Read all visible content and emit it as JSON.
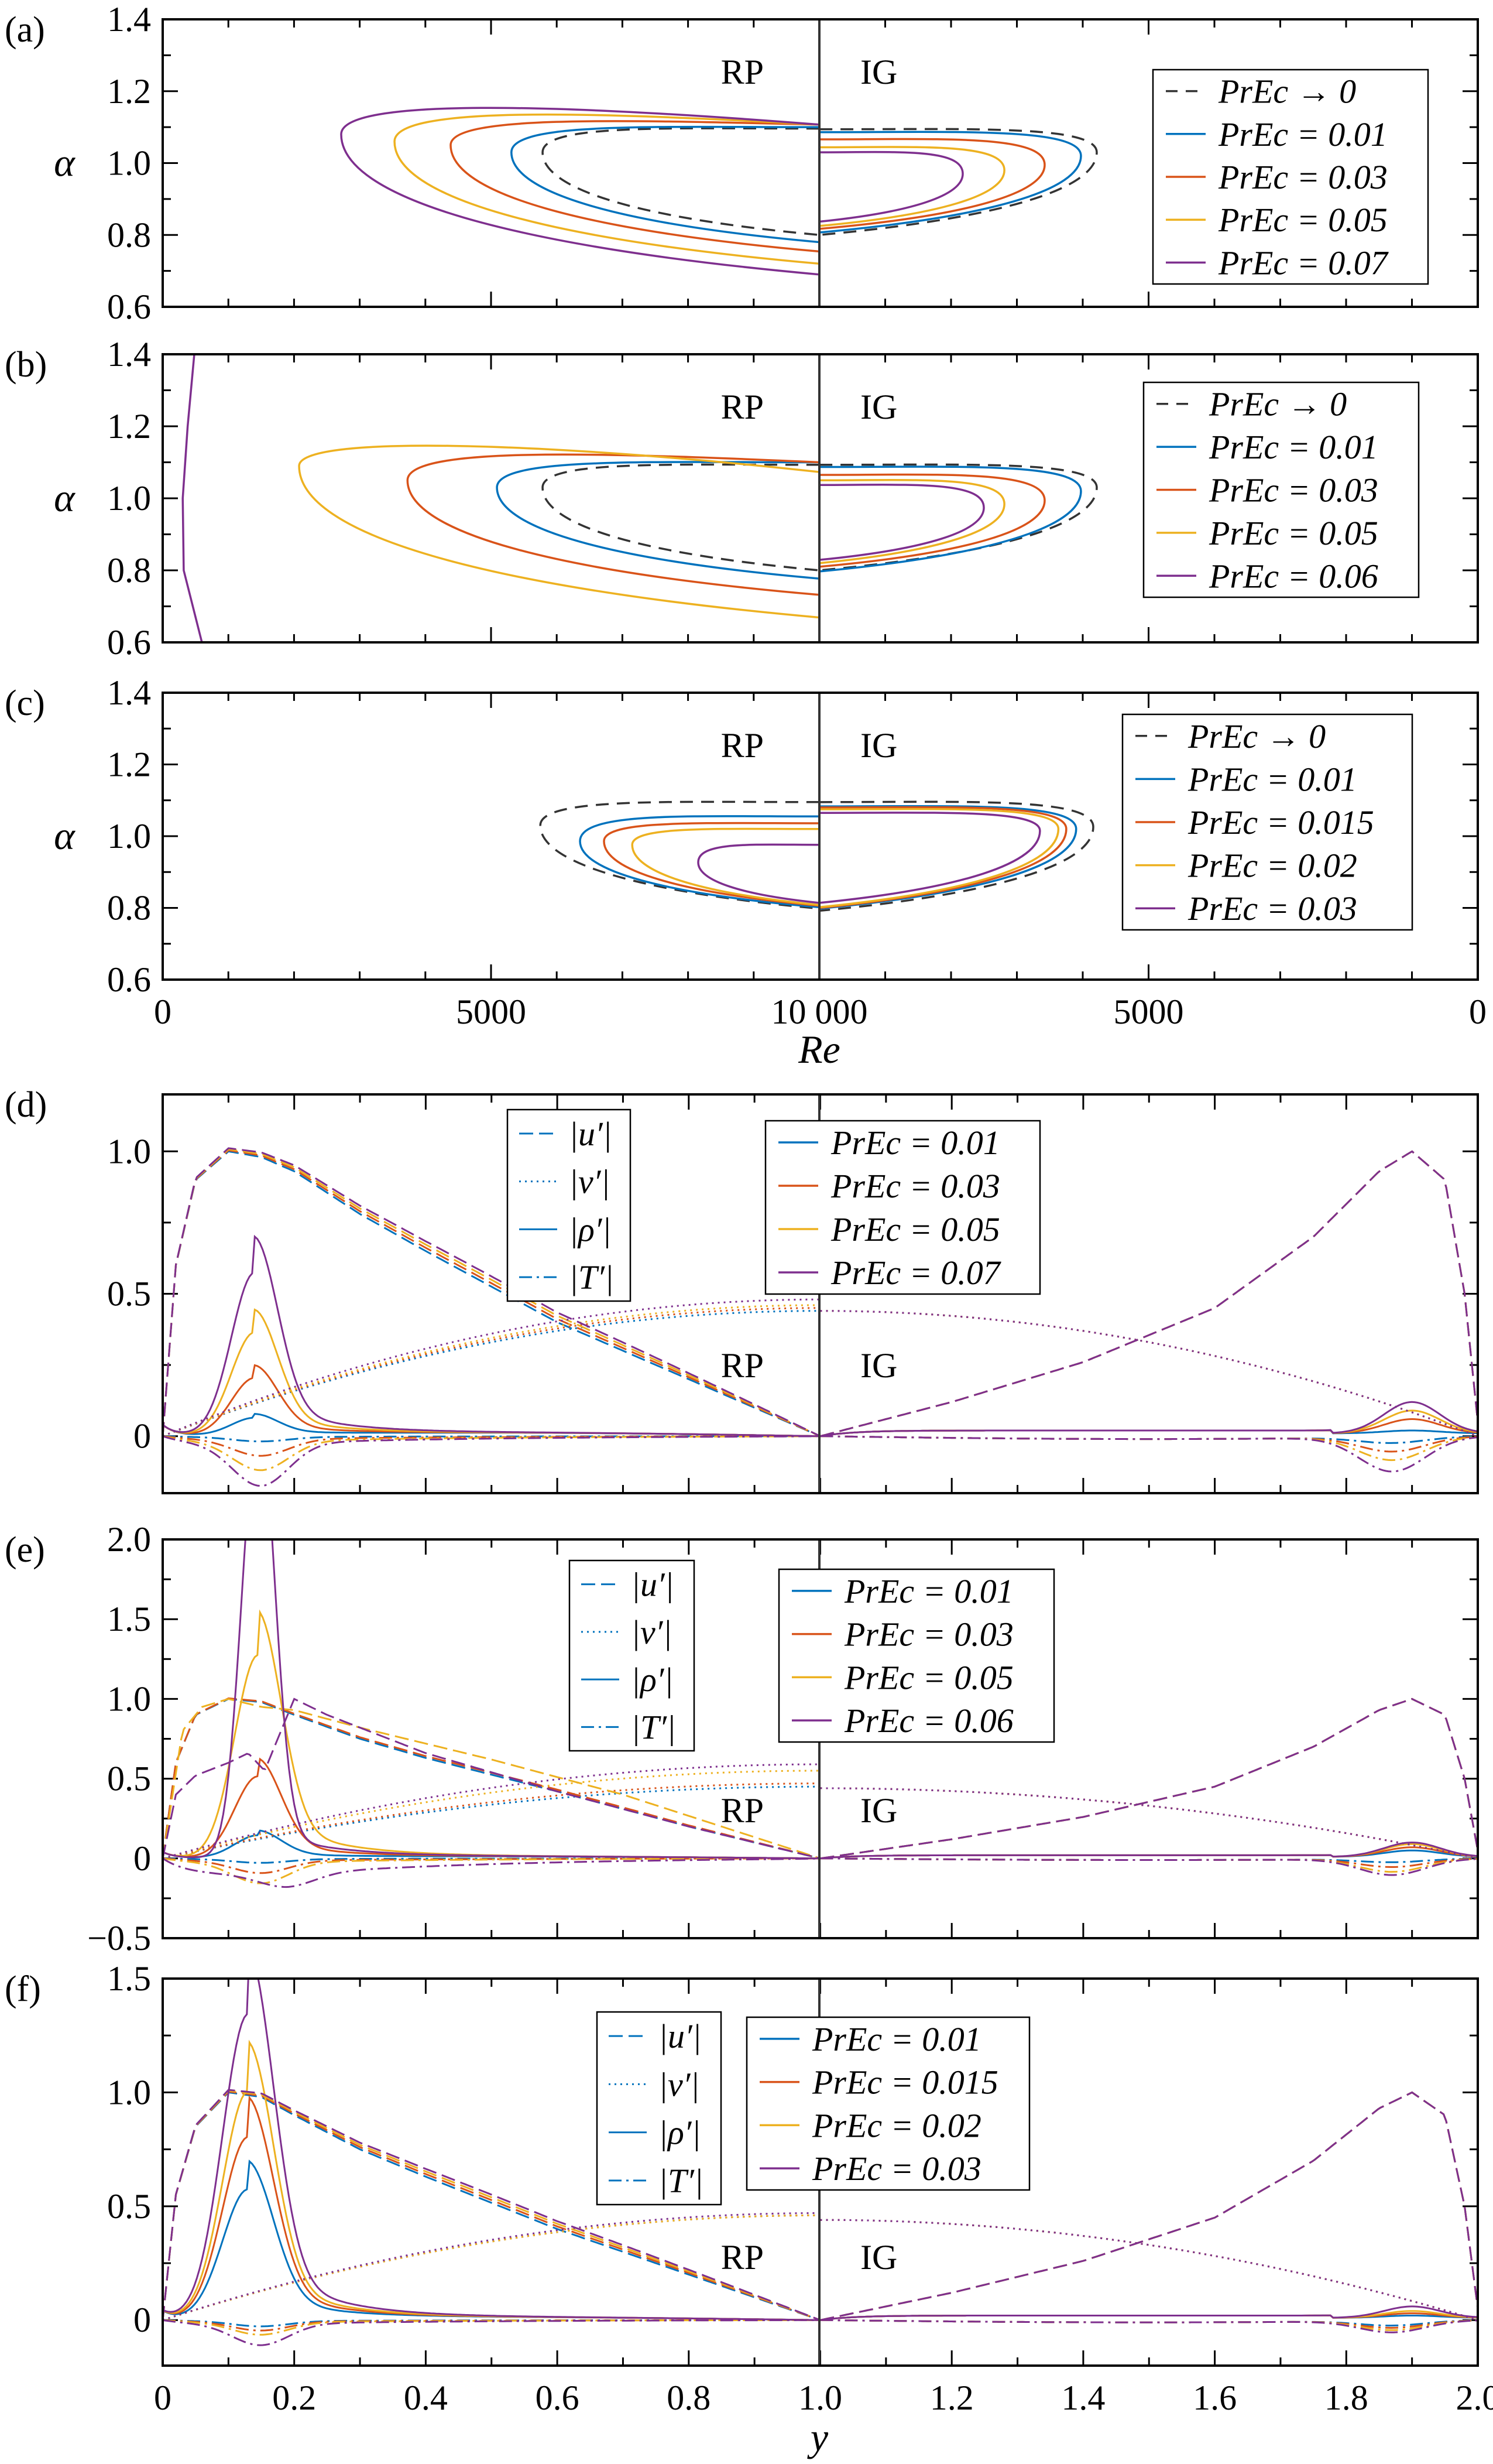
{
  "figure": {
    "re_axis_label": "Re",
    "y_axis_label": "y",
    "alpha_label": "α",
    "region_labels": {
      "rp": "RP",
      "ig": "IG"
    },
    "colors": {
      "black": "#333333",
      "blue": "#0072BD",
      "red": "#D95319",
      "yellow": "#EDB120",
      "purple": "#7E2F8E"
    }
  },
  "chart_data": [
    {
      "panel": "(a)",
      "type": "line",
      "ylabel": "α",
      "ylim": [
        0.6,
        1.4
      ],
      "yticks": [
        0.6,
        0.8,
        1.0,
        1.2,
        1.4
      ],
      "ytick_labels": [
        "0.6",
        "0.8",
        "1.0",
        "1.2",
        "1.4"
      ],
      "xlim_rp": [
        0,
        10000
      ],
      "xlim_ig": [
        10000,
        0
      ],
      "legend_placement": "top-right",
      "series": [
        {
          "label": "PrEc → 0",
          "color": "#333333",
          "dash": true,
          "rp": {
            "nose_re": 5785,
            "nose_alpha": 1.03,
            "upper_alpha": 1.096,
            "top_alpha": 1.096,
            "lower_alpha": 0.8
          },
          "ig": {
            "nose_re": 5787,
            "nose_alpha": 1.03,
            "upper_alpha": 1.094,
            "lower_alpha": 0.8
          }
        },
        {
          "label": "PrEc = 0.01",
          "color": "#0072BD",
          "rp": {
            "nose_re": 5310,
            "nose_alpha": 1.03,
            "upper_alpha": 1.1,
            "top_alpha": 1.1,
            "lower_alpha": 0.78
          },
          "ig": {
            "nose_re": 6027,
            "nose_alpha": 1.02,
            "upper_alpha": 1.086,
            "lower_alpha": 0.807
          }
        },
        {
          "label": "PrEc = 0.03",
          "color": "#D95319",
          "rp": {
            "nose_re": 4385,
            "nose_alpha": 1.05,
            "upper_alpha": 1.107,
            "top_alpha": 1.12,
            "lower_alpha": 0.754
          },
          "ig": {
            "nose_re": 6578,
            "nose_alpha": 0.995,
            "upper_alpha": 1.066,
            "lower_alpha": 0.817
          }
        },
        {
          "label": "PrEc = 0.05",
          "color": "#EDB120",
          "rp": {
            "nose_re": 3530,
            "nose_alpha": 1.06,
            "upper_alpha": 1.107,
            "top_alpha": 1.143,
            "lower_alpha": 0.72
          },
          "ig": {
            "nose_re": 7190,
            "nose_alpha": 0.98,
            "upper_alpha": 1.044,
            "lower_alpha": 0.825
          }
        },
        {
          "label": "PrEc = 0.07",
          "color": "#7E2F8E",
          "rp": {
            "nose_re": 2718,
            "nose_alpha": 1.08,
            "upper_alpha": 1.107,
            "top_alpha": 1.165,
            "lower_alpha": 0.69
          },
          "ig": {
            "nose_re": 7822,
            "nose_alpha": 0.97,
            "upper_alpha": 1.03,
            "lower_alpha": 0.837
          }
        }
      ]
    },
    {
      "panel": "(b)",
      "type": "line",
      "ylabel": "α",
      "ylim": [
        0.6,
        1.4
      ],
      "yticks": [
        0.6,
        0.8,
        1.0,
        1.2,
        1.4
      ],
      "ytick_labels": [
        "0.6",
        "0.8",
        "1.0",
        "1.2",
        "1.4"
      ],
      "xlim_rp": [
        0,
        10000
      ],
      "xlim_ig": [
        10000,
        0
      ],
      "legend_placement": "top-right",
      "series": [
        {
          "label": "PrEc → 0",
          "color": "#333333",
          "dash": true,
          "rp": {
            "nose_re": 5785,
            "nose_alpha": 1.03,
            "upper_alpha": 1.093,
            "top_alpha": 1.093,
            "lower_alpha": 0.8
          },
          "ig": {
            "nose_re": 5787,
            "nose_alpha": 1.03,
            "upper_alpha": 1.093,
            "lower_alpha": 0.8
          }
        },
        {
          "label": "PrEc = 0.01",
          "color": "#0072BD",
          "rp": {
            "nose_re": 5090,
            "nose_alpha": 1.03,
            "upper_alpha": 1.1,
            "top_alpha": 1.1,
            "lower_alpha": 0.777
          },
          "ig": {
            "nose_re": 6027,
            "nose_alpha": 1.02,
            "upper_alpha": 1.087,
            "lower_alpha": 0.797
          }
        },
        {
          "label": "PrEc = 0.03",
          "color": "#D95319",
          "rp": {
            "nose_re": 3728,
            "nose_alpha": 1.05,
            "upper_alpha": 1.1,
            "top_alpha": 1.128,
            "lower_alpha": 0.732
          },
          "ig": {
            "nose_re": 6578,
            "nose_alpha": 0.994,
            "upper_alpha": 1.065,
            "lower_alpha": 0.81
          }
        },
        {
          "label": "PrEc = 0.05",
          "color": "#EDB120",
          "rp": {
            "nose_re": 2077,
            "nose_alpha": 1.09,
            "upper_alpha": 1.073,
            "top_alpha": 1.16,
            "lower_alpha": 0.669
          },
          "ig": {
            "nose_re": 7190,
            "nose_alpha": 0.984,
            "upper_alpha": 1.05,
            "lower_alpha": 0.82
          }
        },
        {
          "label": "PrEc = 0.06",
          "color": "#7E2F8E",
          "rp_points": [
            [
              481,
              1.4
            ],
            [
              380,
              1.2
            ],
            [
              305,
              1.0
            ],
            [
              320,
              0.8
            ],
            [
              597,
              0.6
            ]
          ],
          "ig": {
            "nose_re": 7502,
            "nose_alpha": 0.974,
            "upper_alpha": 1.037,
            "lower_alpha": 0.829
          }
        }
      ]
    },
    {
      "panel": "(c)",
      "type": "line",
      "ylabel": "α",
      "xlabel": "Re",
      "ylim": [
        0.6,
        1.4
      ],
      "yticks": [
        0.6,
        0.8,
        1.0,
        1.2,
        1.4
      ],
      "ytick_labels": [
        "0.6",
        "0.8",
        "1.0",
        "1.2",
        "1.4"
      ],
      "xlim_rp": [
        0,
        10000
      ],
      "xlim_ig": [
        10000,
        0
      ],
      "xtick_labels": [
        "0",
        "5000",
        "10 000",
        "5000",
        "0"
      ],
      "legend_placement": "top-right",
      "series": [
        {
          "label": "PrEc → 0",
          "color": "#333333",
          "dash": true,
          "rp": {
            "nose_re": 5750,
            "nose_alpha": 1.03,
            "upper_alpha": 1.095,
            "top_alpha": 1.095,
            "lower_alpha": 0.798
          },
          "ig": {
            "nose_re": 5840,
            "nose_alpha": 1.026,
            "upper_alpha": 1.095,
            "lower_alpha": 0.792
          }
        },
        {
          "label": "PrEc = 0.01",
          "color": "#0072BD",
          "rp": {
            "nose_re": 6355,
            "nose_alpha": 0.986,
            "upper_alpha": 1.055,
            "top_alpha": 1.055,
            "lower_alpha": 0.802
          },
          "ig": {
            "nose_re": 6100,
            "nose_alpha": 1.02,
            "upper_alpha": 1.083,
            "lower_alpha": 0.798
          }
        },
        {
          "label": "PrEc = 0.015",
          "color": "#D95319",
          "rp": {
            "nose_re": 6720,
            "nose_alpha": 0.986,
            "upper_alpha": 1.036,
            "top_alpha": 1.036,
            "lower_alpha": 0.806
          },
          "ig": {
            "nose_re": 6250,
            "nose_alpha": 1.02,
            "upper_alpha": 1.08,
            "lower_alpha": 0.8
          }
        },
        {
          "label": "PrEc = 0.02",
          "color": "#EDB120",
          "rp": {
            "nose_re": 7150,
            "nose_alpha": 0.976,
            "upper_alpha": 1.02,
            "top_alpha": 1.02,
            "lower_alpha": 0.808
          },
          "ig": {
            "nose_re": 6370,
            "nose_alpha": 1.02,
            "upper_alpha": 1.075,
            "lower_alpha": 0.802
          }
        },
        {
          "label": "PrEc = 0.03",
          "color": "#7E2F8E",
          "rp": {
            "nose_re": 8155,
            "nose_alpha": 0.927,
            "upper_alpha": 0.976,
            "top_alpha": 0.976,
            "lower_alpha": 0.814
          },
          "ig": {
            "nose_re": 6650,
            "nose_alpha": 1.015,
            "upper_alpha": 1.065,
            "lower_alpha": 0.814
          }
        }
      ]
    },
    {
      "panel": "(d)",
      "type": "line",
      "ylim": [
        -0.2,
        1.2
      ],
      "xlim": [
        0,
        2
      ],
      "yticks": [
        0,
        0.5,
        1.0
      ],
      "ytick_labels": [
        "0",
        "0.5",
        "1.0"
      ],
      "variable_legend": [
        "|u′|",
        "|v′|",
        "|ρ′|",
        "|T′|"
      ],
      "rho_center": 0.14,
      "rho_width": 0.05,
      "u_rp": [
        [
          0,
          0
        ],
        [
          0.02,
          0.6
        ],
        [
          0.05,
          0.9
        ],
        [
          0.1,
          1.0
        ],
        [
          0.15,
          0.98
        ],
        [
          0.2,
          0.93
        ],
        [
          0.3,
          0.78
        ],
        [
          0.4,
          0.65
        ],
        [
          0.6,
          0.4
        ],
        [
          0.8,
          0.2
        ],
        [
          1.0,
          0
        ]
      ],
      "u_ig": [
        [
          1.0,
          0
        ],
        [
          1.2,
          0.12
        ],
        [
          1.4,
          0.26
        ],
        [
          1.6,
          0.45
        ],
        [
          1.75,
          0.7
        ],
        [
          1.85,
          0.93
        ],
        [
          1.9,
          1.0
        ],
        [
          1.95,
          0.9
        ],
        [
          1.98,
          0.5
        ],
        [
          2.0,
          0.05
        ]
      ],
      "v_ig_start": 0.44,
      "series": [
        {
          "label": "PrEc = 0.01",
          "color": "#0072BD",
          "rho_peak": 0.06,
          "T_min": 0.02,
          "rho_ig_peak": 0.01,
          "T_ig_min": 0.02,
          "v_end": 0.44
        },
        {
          "label": "PrEc = 0.03",
          "color": "#D95319",
          "rho_peak": 0.2,
          "T_min": 0.075,
          "rho_ig_peak": 0.05,
          "T_ig_min": 0.05,
          "v_end": 0.45
        },
        {
          "label": "PrEc = 0.05",
          "color": "#EDB120",
          "rho_peak": 0.36,
          "T_min": 0.13,
          "rho_ig_peak": 0.08,
          "T_ig_min": 0.08,
          "v_end": 0.46
        },
        {
          "label": "PrEc = 0.07",
          "color": "#7E2F8E",
          "rho_peak": 0.57,
          "T_min": 0.19,
          "rho_ig_peak": 0.11,
          "T_ig_min": 0.12,
          "v_end": 0.48
        }
      ]
    },
    {
      "panel": "(e)",
      "type": "line",
      "ylim": [
        -0.5,
        2.0
      ],
      "xlim": [
        0,
        2
      ],
      "yticks": [
        -0.5,
        0,
        0.5,
        1.0,
        1.5,
        2.0
      ],
      "ytick_labels": [
        "−0.5",
        "0",
        "0.5",
        "1.0",
        "1.5",
        "2.0"
      ],
      "variable_legend": [
        "|u′|",
        "|v′|",
        "|ρ′|",
        "|T′|"
      ],
      "rho_center": 0.145,
      "rho_width": 0.05,
      "u_rp": [
        [
          0,
          0
        ],
        [
          0.02,
          0.6
        ],
        [
          0.05,
          0.9
        ],
        [
          0.1,
          1.0
        ],
        [
          0.15,
          0.98
        ],
        [
          0.2,
          0.9
        ],
        [
          0.3,
          0.75
        ],
        [
          0.4,
          0.63
        ],
        [
          0.6,
          0.42
        ],
        [
          0.8,
          0.2
        ],
        [
          1.0,
          0
        ]
      ],
      "u_ig": [
        [
          1.0,
          0
        ],
        [
          1.2,
          0.12
        ],
        [
          1.4,
          0.26
        ],
        [
          1.6,
          0.45
        ],
        [
          1.75,
          0.7
        ],
        [
          1.85,
          0.93
        ],
        [
          1.9,
          1.0
        ],
        [
          1.95,
          0.9
        ],
        [
          1.98,
          0.5
        ],
        [
          2.0,
          0.05
        ]
      ],
      "v_ig_start": 0.44,
      "series": [
        {
          "label": "PrEc = 0.01",
          "color": "#0072BD",
          "rho_peak": 0.14,
          "T_min": 0.03,
          "rho_ig_peak": 0.04,
          "T_ig_min": 0.02,
          "v_end": 0.45
        },
        {
          "label": "PrEc = 0.03",
          "color": "#D95319",
          "rho_peak": 0.51,
          "T_min": 0.1,
          "rho_ig_peak": 0.06,
          "T_ig_min": 0.05,
          "v_end": 0.47
        },
        {
          "label": "PrEc = 0.05",
          "color": "#EDB120",
          "rho_peak": 1.27,
          "T_min": 0.17,
          "rho_ig_peak": 0.08,
          "T_ig_min": 0.08,
          "v_end": 0.55,
          "u_rp_override": [
            [
              0,
              0
            ],
            [
              0.03,
              0.8
            ],
            [
              0.06,
              0.95
            ],
            [
              0.1,
              1.0
            ],
            [
              0.15,
              0.95
            ],
            [
              0.2,
              0.93
            ],
            [
              0.3,
              0.82
            ],
            [
              0.5,
              0.62
            ],
            [
              0.7,
              0.4
            ],
            [
              1.0,
              0
            ]
          ]
        },
        {
          "label": "PrEc = 0.06",
          "color": "#7E2F8E",
          "rho_peak": 2.7,
          "rho_width": 0.035,
          "T_min": 0.2,
          "T_center": 0.19,
          "T_tail": 0.55,
          "rho_ig_peak": 0.09,
          "T_ig_min": 0.1,
          "v_end": 0.59,
          "u_rp_override": [
            [
              0,
              0
            ],
            [
              0.02,
              0.4
            ],
            [
              0.05,
              0.52
            ],
            [
              0.1,
              0.6
            ],
            [
              0.13,
              0.66
            ],
            [
              0.155,
              0.55
            ],
            [
              0.2,
              1.0
            ],
            [
              0.25,
              0.9
            ],
            [
              0.4,
              0.66
            ],
            [
              0.6,
              0.42
            ],
            [
              0.8,
              0.2
            ],
            [
              1.0,
              0
            ]
          ]
        }
      ]
    },
    {
      "panel": "(f)",
      "type": "line",
      "xlabel": "y",
      "ylim": [
        -0.2,
        1.5
      ],
      "xlim": [
        0,
        2
      ],
      "yticks": [
        0,
        0.5,
        1.0,
        1.5
      ],
      "ytick_labels": [
        "0",
        "0.5",
        "1.0",
        "1.5"
      ],
      "xticks": [
        0,
        0.2,
        0.4,
        0.6,
        0.8,
        1.0,
        1.2,
        1.4,
        1.6,
        1.8,
        2.0
      ],
      "xtick_labels": [
        "0",
        "0.2",
        "0.4",
        "0.6",
        "0.8",
        "1.0",
        "1.2",
        "1.4",
        "1.6",
        "1.8",
        "2.0"
      ],
      "variable_legend": [
        "|u′|",
        "|v′|",
        "|ρ′|",
        "|T′|"
      ],
      "rho_center": 0.13,
      "rho_width": 0.055,
      "u_rp": [
        [
          0,
          0
        ],
        [
          0.02,
          0.55
        ],
        [
          0.05,
          0.85
        ],
        [
          0.1,
          1.0
        ],
        [
          0.15,
          0.98
        ],
        [
          0.2,
          0.9
        ],
        [
          0.3,
          0.75
        ],
        [
          0.4,
          0.63
        ],
        [
          0.6,
          0.4
        ],
        [
          0.8,
          0.2
        ],
        [
          1.0,
          0
        ]
      ],
      "u_ig": [
        [
          1.0,
          0
        ],
        [
          1.2,
          0.12
        ],
        [
          1.4,
          0.26
        ],
        [
          1.6,
          0.45
        ],
        [
          1.75,
          0.7
        ],
        [
          1.85,
          0.93
        ],
        [
          1.9,
          1.0
        ],
        [
          1.95,
          0.9
        ],
        [
          1.98,
          0.5
        ],
        [
          2.0,
          0.05
        ]
      ],
      "v_ig_start": 0.44,
      "series": [
        {
          "label": "PrEc = 0.01",
          "color": "#0072BD",
          "rho_peak": 0.57,
          "T_min": 0.03,
          "rho_ig_peak": 0.01,
          "T_ig_min": 0.02,
          "v_end": 0.46
        },
        {
          "label": "PrEc = 0.015",
          "color": "#D95319",
          "rho_peak": 0.8,
          "T_min": 0.05,
          "rho_ig_peak": 0.02,
          "T_ig_min": 0.03,
          "v_end": 0.46
        },
        {
          "label": "PrEc = 0.02",
          "color": "#EDB120",
          "rho_peak": 1.0,
          "T_min": 0.07,
          "rho_ig_peak": 0.03,
          "T_ig_min": 0.04,
          "v_end": 0.46
        },
        {
          "label": "PrEc = 0.03",
          "color": "#7E2F8E",
          "rho_peak": 1.34,
          "T_min": 0.12,
          "rho_ig_peak": 0.05,
          "T_ig_min": 0.05,
          "v_end": 0.47
        }
      ]
    }
  ]
}
